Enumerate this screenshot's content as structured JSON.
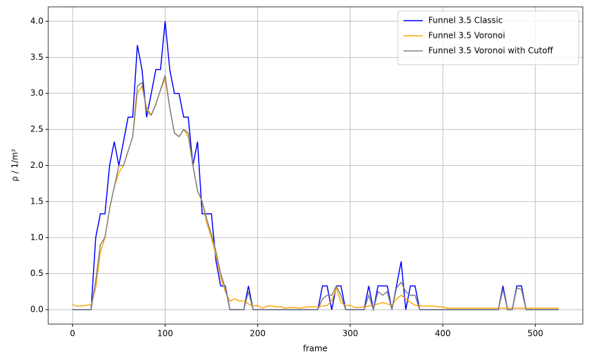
{
  "chart_data": {
    "type": "line",
    "xlabel": "frame",
    "ylabel": "ρ / 1/m²",
    "x": [
      0,
      5,
      10,
      15,
      20,
      25,
      30,
      35,
      40,
      45,
      50,
      55,
      60,
      65,
      70,
      75,
      80,
      85,
      90,
      95,
      100,
      105,
      110,
      115,
      120,
      125,
      130,
      135,
      140,
      145,
      150,
      155,
      160,
      165,
      170,
      175,
      180,
      185,
      190,
      195,
      200,
      205,
      210,
      215,
      220,
      225,
      230,
      235,
      240,
      245,
      250,
      255,
      260,
      265,
      270,
      275,
      280,
      285,
      290,
      295,
      300,
      305,
      310,
      315,
      320,
      325,
      330,
      335,
      340,
      345,
      350,
      355,
      360,
      365,
      370,
      375,
      380,
      385,
      390,
      395,
      400,
      405,
      410,
      415,
      420,
      425,
      430,
      435,
      440,
      445,
      450,
      455,
      460,
      465,
      470,
      475,
      480,
      485,
      490,
      495,
      500,
      505,
      510,
      515,
      520,
      525
    ],
    "series": [
      {
        "name": "Funnel 3.5 Classic",
        "color": "#0000ff",
        "values": [
          0,
          0,
          0,
          0,
          0,
          1.0,
          1.33,
          1.33,
          2.0,
          2.33,
          2.0,
          2.33,
          2.67,
          2.67,
          3.67,
          3.33,
          2.67,
          3.0,
          3.33,
          3.33,
          4.0,
          3.33,
          3.0,
          3.0,
          2.67,
          2.67,
          2.0,
          2.33,
          1.33,
          1.33,
          1.33,
          0.67,
          0.33,
          0.33,
          0,
          0,
          0,
          0,
          0.33,
          0,
          0,
          0,
          0,
          0,
          0,
          0,
          0,
          0,
          0,
          0,
          0,
          0,
          0,
          0,
          0.33,
          0.33,
          0,
          0.33,
          0.33,
          0,
          0,
          0,
          0,
          0,
          0.33,
          0,
          0.33,
          0.33,
          0.33,
          0,
          0.33,
          0.67,
          0,
          0.33,
          0.33,
          0,
          0,
          0,
          0,
          0,
          0,
          0,
          0,
          0,
          0,
          0,
          0,
          0,
          0,
          0,
          0,
          0,
          0,
          0.33,
          0,
          0,
          0.33,
          0.33,
          0,
          0,
          0,
          0,
          0,
          0,
          0,
          0
        ]
      },
      {
        "name": "Funnel 3.5 Voronoi",
        "color": "#ffa500",
        "values": [
          0.07,
          0.05,
          0.05,
          0.06,
          0.07,
          0.3,
          0.8,
          1.0,
          1.4,
          1.7,
          1.9,
          2.0,
          2.2,
          2.4,
          3.0,
          3.1,
          2.8,
          2.7,
          2.85,
          3.05,
          3.2,
          2.8,
          2.45,
          2.4,
          2.5,
          2.4,
          2.0,
          1.65,
          1.5,
          1.2,
          1.0,
          0.75,
          0.45,
          0.25,
          0.12,
          0.15,
          0.12,
          0.12,
          0.08,
          0.05,
          0.06,
          0.02,
          0.05,
          0.05,
          0.04,
          0.04,
          0.02,
          0.03,
          0.03,
          0.02,
          0.03,
          0.04,
          0.04,
          0.04,
          0.05,
          0.06,
          0.12,
          0.3,
          0.1,
          0.06,
          0.06,
          0.03,
          0.03,
          0.04,
          0.05,
          0.06,
          0.08,
          0.1,
          0.08,
          0.06,
          0.15,
          0.2,
          0.15,
          0.1,
          0.06,
          0.06,
          0.05,
          0.05,
          0.05,
          0.04,
          0.04,
          0.02,
          0.02,
          0.02,
          0.02,
          0.02,
          0.02,
          0.02,
          0.02,
          0.02,
          0.02,
          0.02,
          0.02,
          0.02,
          0.02,
          0.02,
          0.02,
          0.02,
          0.02,
          0.02,
          0.02,
          0.02,
          0.02,
          0.02,
          0.02,
          0.02
        ]
      },
      {
        "name": "Funnel 3.5 Voronoi with Cutoff",
        "color": "#808080",
        "values": [
          0,
          0,
          0,
          0,
          0,
          0.4,
          0.9,
          1.0,
          1.4,
          1.7,
          2.0,
          2.0,
          2.2,
          2.4,
          3.1,
          3.15,
          2.75,
          2.7,
          2.85,
          3.05,
          3.25,
          2.8,
          2.45,
          2.4,
          2.5,
          2.45,
          2.0,
          1.65,
          1.5,
          1.25,
          1.05,
          0.8,
          0.5,
          0.3,
          0,
          0,
          0,
          0,
          0.25,
          0,
          0,
          0,
          0,
          0,
          0,
          0,
          0,
          0,
          0,
          0,
          0,
          0,
          0,
          0,
          0.15,
          0.2,
          0.2,
          0.33,
          0.2,
          0,
          0,
          0,
          0,
          0,
          0.2,
          0,
          0.25,
          0.2,
          0.25,
          0,
          0.3,
          0.38,
          0.25,
          0.2,
          0.2,
          0,
          0,
          0,
          0,
          0,
          0,
          0,
          0,
          0,
          0,
          0,
          0,
          0,
          0,
          0,
          0,
          0,
          0,
          0.28,
          0,
          0,
          0.3,
          0.28,
          0,
          0,
          0,
          0,
          0,
          0,
          0,
          0
        ]
      }
    ],
    "xlim": [
      -26.25,
      551.25
    ],
    "ylim": [
      -0.2,
      4.2
    ],
    "xticks": [
      0,
      100,
      200,
      300,
      400,
      500
    ],
    "yticks": [
      {
        "value": 0,
        "label": "0.0"
      },
      {
        "value": 0.5,
        "label": "0.5"
      },
      {
        "value": 1,
        "label": "1.0"
      },
      {
        "value": 1.5,
        "label": "1.5"
      },
      {
        "value": 2,
        "label": "2.0"
      },
      {
        "value": 2.5,
        "label": "2.5"
      },
      {
        "value": 3,
        "label": "3.0"
      },
      {
        "value": 3.5,
        "label": "3.5"
      },
      {
        "value": 4,
        "label": "4.0"
      }
    ],
    "grid": true,
    "legend": "upper right"
  }
}
